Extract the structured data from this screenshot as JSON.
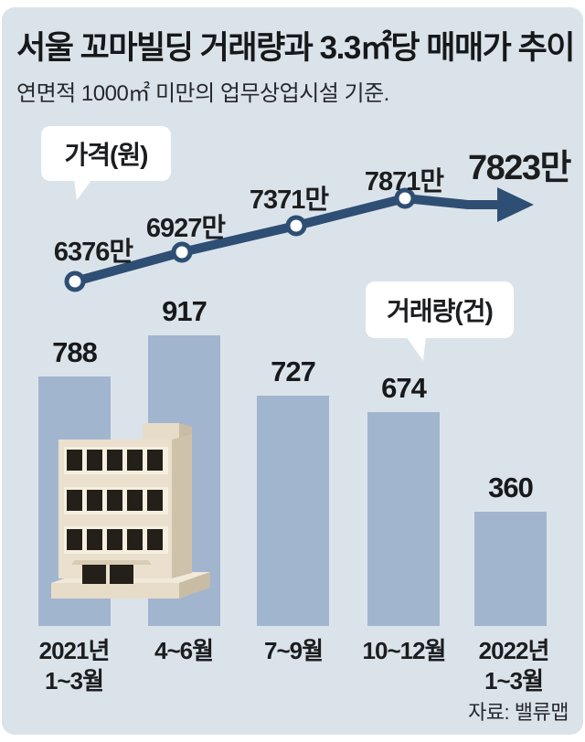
{
  "header": {
    "title": "서울 꼬마빌딩 거래량과 3.3㎡당 매매가 추이",
    "subtitle": "연면적 1000㎡ 미만의 업무상업시설 기준."
  },
  "bubbles": {
    "price": "가격(원)",
    "volume": "거래량(건)"
  },
  "source": "자료: 밸류맵",
  "colors": {
    "card_background": "#dbe3ea",
    "line": "#2e4e74",
    "bar": "#a2b5cf",
    "text": "#1b1d1f",
    "bubble_background": "#ffffff",
    "building_front": "#eae0cd",
    "building_side": "#cfc2aa"
  },
  "chart_data": {
    "type": "line+bar",
    "categories": [
      "2021년 1~3월",
      "4~6월",
      "7~9월",
      "10~12월",
      "2022년 1~3월"
    ],
    "series": [
      {
        "name": "가격(원)",
        "type": "line",
        "unit": "만원 per 3.3㎡",
        "values": [
          6376,
          6927,
          7371,
          7871,
          7823
        ],
        "labels": [
          "6376만",
          "6927만",
          "7371만",
          "7871만",
          "7823만"
        ]
      },
      {
        "name": "거래량(건)",
        "type": "bar",
        "unit": "건",
        "values": [
          788,
          917,
          727,
          674,
          360
        ]
      }
    ],
    "bar_pixel_scale": 0.3465,
    "legend_position": "speech-bubbles",
    "grid": false
  },
  "x_axis": {
    "labels": [
      [
        "2021년",
        "1~3월"
      ],
      [
        "4~6월"
      ],
      [
        "7~9월"
      ],
      [
        "10~12월"
      ],
      [
        "2022년",
        "1~3월"
      ]
    ]
  }
}
